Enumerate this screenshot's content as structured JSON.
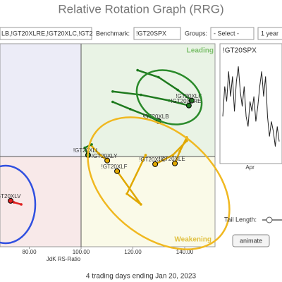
{
  "header": {
    "title": "Relative Rotation Graph (RRG)",
    "symbols": "LB,!GT20XLRE,!GT20XLC,!GT2",
    "benchmark_label": "Benchmark:",
    "benchmark": "!GT20SPX",
    "groups_label": "Groups:",
    "groups": "- Select -",
    "period": "1 year"
  },
  "chart_data": [
    {
      "type": "scatter",
      "x_label": "JdK RS-Ratio",
      "quadrants": {
        "leading": "Leading",
        "weakening": "Weakening"
      },
      "xlim": [
        68.7,
        151.7
      ],
      "ylim": [
        65.2,
        143.4
      ],
      "xticks": [
        {
          "value": 80,
          "label": "80.00"
        },
        {
          "value": 100,
          "label": "100.00"
        },
        {
          "value": 120,
          "label": "120.00"
        },
        {
          "value": 140,
          "label": "140.00"
        }
      ],
      "series": [
        {
          "name": "!GT20XLK",
          "color": "#1e7a1e",
          "x": [
            121.8,
            129.9,
            137.3,
            142.7
          ],
          "values": [
            133.2,
            130.5,
            125.6,
            121.5
          ]
        },
        {
          "name": "!GT20XLRE",
          "color": "#1e7a1e",
          "x": [
            112.2,
            123.1,
            134.0,
            141.6
          ],
          "values": [
            125.0,
            123.7,
            121.5,
            119.6
          ]
        },
        {
          "name": "!GT20XLB",
          "color": "#1e7a1e",
          "x": [
            112.2,
            119.0,
            125.9,
            129.9
          ],
          "values": [
            121.0,
            118.2,
            115.5,
            113.6
          ]
        },
        {
          "name": "!GT20XLY",
          "color": "#e0a800",
          "x": [
            103.5,
            106.8,
            110.1
          ],
          "values": [
            104.6,
            101.1,
            98.4
          ]
        },
        {
          "name": "!GT20XLI",
          "color": "#1e7a1e",
          "x": [
            104.1,
            101.4,
            102.7
          ],
          "values": [
            104.6,
            103.3,
            100.5
          ]
        },
        {
          "name": "!GT20XLF",
          "color": "#e0a800",
          "x": [
            124.9,
            117.7,
            123.1,
            113.9
          ],
          "values": [
            100.5,
            85.6,
            81.5,
            94.3
          ]
        },
        {
          "name": "!GT20XLC",
          "color": "#e0a800",
          "x": [
            140.8,
            135.4,
            128.6
          ],
          "values": [
            106.0,
            100.5,
            97.0
          ]
        },
        {
          "name": "!GT20XLE",
          "color": "#e0a800",
          "x": [
            140.8,
            138.1,
            136.2
          ],
          "values": [
            107.3,
            101.9,
            97.3
          ]
        },
        {
          "name": "!GT20XLV",
          "color": "#e02020",
          "x": [
            76.9,
            74.1,
            72.8
          ],
          "values": [
            81.5,
            82.3,
            82.9
          ]
        }
      ]
    },
    {
      "type": "line",
      "title": "!GT20SPX",
      "color": "#222",
      "ylim": [
        0,
        100
      ],
      "categories": [
        null,
        null,
        null,
        null,
        null,
        null,
        null,
        null,
        null,
        null,
        null,
        null,
        null,
        null,
        "Apr",
        null,
        null,
        null,
        null,
        null,
        null,
        null,
        null,
        null,
        null,
        null,
        null,
        null,
        null,
        null
      ],
      "values": [
        40,
        70,
        55,
        85,
        60,
        80,
        45,
        75,
        90,
        65,
        50,
        70,
        40,
        30,
        55,
        45,
        60,
        35,
        50,
        70,
        85,
        60,
        80,
        40,
        20,
        35,
        25,
        10,
        30,
        15
      ]
    }
  ],
  "controls": {
    "tail_label": "Tail Length:",
    "animate": "animate"
  },
  "footer": "4 trading days ending Jan 20, 2023"
}
